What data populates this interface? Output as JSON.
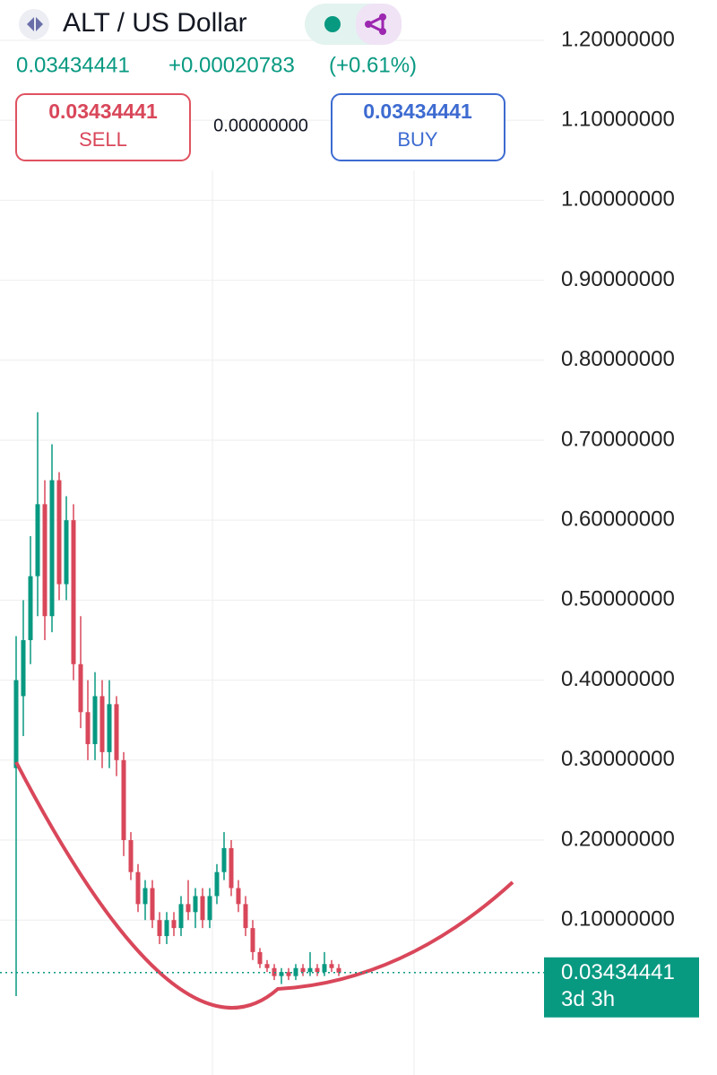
{
  "chart_data": {
    "type": "candlestick",
    "title": "ALT / US Dollar",
    "quote": {
      "price": "0.03434441",
      "change": "+0.00020783",
      "change_pct": "(+0.61%)"
    },
    "sell": {
      "price": "0.03434441",
      "label": "SELL"
    },
    "spread": "0.00000000",
    "buy": {
      "price": "0.03434441",
      "label": "BUY"
    },
    "last_price": {
      "value": 0.03434441,
      "label": "0.03434441",
      "countdown": "3d 3h"
    },
    "up_color": "#089981",
    "down_color": "#d9475a",
    "open": [
      0.29,
      0.38,
      0.45,
      0.53,
      0.62,
      0.48,
      0.65,
      0.52,
      0.6,
      0.42,
      0.36,
      0.32,
      0.38,
      0.31,
      0.37,
      0.3,
      0.2,
      0.16,
      0.12,
      0.14,
      0.1,
      0.08,
      0.1,
      0.09,
      0.12,
      0.11,
      0.13,
      0.1,
      0.13,
      0.16,
      0.19,
      0.14,
      0.12,
      0.09,
      0.06,
      0.045,
      0.04,
      0.03,
      0.035,
      0.03,
      0.04,
      0.035,
      0.04,
      0.035,
      0.045,
      0.04
    ],
    "high": [
      0.455,
      0.5,
      0.58,
      0.735,
      0.65,
      0.695,
      0.66,
      0.63,
      0.62,
      0.48,
      0.4,
      0.41,
      0.4,
      0.4,
      0.38,
      0.31,
      0.21,
      0.17,
      0.15,
      0.15,
      0.11,
      0.11,
      0.11,
      0.13,
      0.15,
      0.14,
      0.14,
      0.14,
      0.17,
      0.21,
      0.2,
      0.15,
      0.13,
      0.1,
      0.065,
      0.05,
      0.045,
      0.04,
      0.04,
      0.045,
      0.045,
      0.06,
      0.045,
      0.06,
      0.05,
      0.045
    ],
    "low": [
      0.005,
      0.33,
      0.42,
      0.48,
      0.45,
      0.46,
      0.5,
      0.5,
      0.4,
      0.34,
      0.3,
      0.3,
      0.29,
      0.29,
      0.28,
      0.18,
      0.15,
      0.11,
      0.1,
      0.09,
      0.07,
      0.07,
      0.08,
      0.08,
      0.1,
      0.09,
      0.09,
      0.09,
      0.12,
      0.15,
      0.13,
      0.11,
      0.08,
      0.05,
      0.04,
      0.035,
      0.025,
      0.02,
      0.025,
      0.025,
      0.03,
      0.03,
      0.03,
      0.03,
      0.035,
      0.03
    ],
    "close": [
      0.4,
      0.45,
      0.53,
      0.62,
      0.48,
      0.65,
      0.52,
      0.6,
      0.42,
      0.36,
      0.32,
      0.38,
      0.31,
      0.37,
      0.3,
      0.2,
      0.16,
      0.12,
      0.14,
      0.1,
      0.08,
      0.1,
      0.09,
      0.12,
      0.11,
      0.13,
      0.1,
      0.13,
      0.16,
      0.19,
      0.14,
      0.12,
      0.09,
      0.06,
      0.045,
      0.04,
      0.03,
      0.035,
      0.03,
      0.04,
      0.035,
      0.04,
      0.035,
      0.045,
      0.04,
      0.03434441
    ],
    "ylim": [
      -0.0937,
      1.2504
    ],
    "yticks": [
      {
        "value": 1.2,
        "label": "1.20000000"
      },
      {
        "value": 1.1,
        "label": "1.10000000"
      },
      {
        "value": 1.0,
        "label": "1.00000000"
      },
      {
        "value": 0.9,
        "label": "0.90000000"
      },
      {
        "value": 0.8,
        "label": "0.80000000"
      },
      {
        "value": 0.7,
        "label": "0.70000000"
      },
      {
        "value": 0.6,
        "label": "0.60000000"
      },
      {
        "value": 0.5,
        "label": "0.50000000"
      },
      {
        "value": 0.4,
        "label": "0.40000000"
      },
      {
        "value": 0.3,
        "label": "0.30000000"
      },
      {
        "value": 0.2,
        "label": "0.20000000"
      },
      {
        "value": 0.1,
        "label": "0.10000000"
      }
    ],
    "grid": true
  }
}
